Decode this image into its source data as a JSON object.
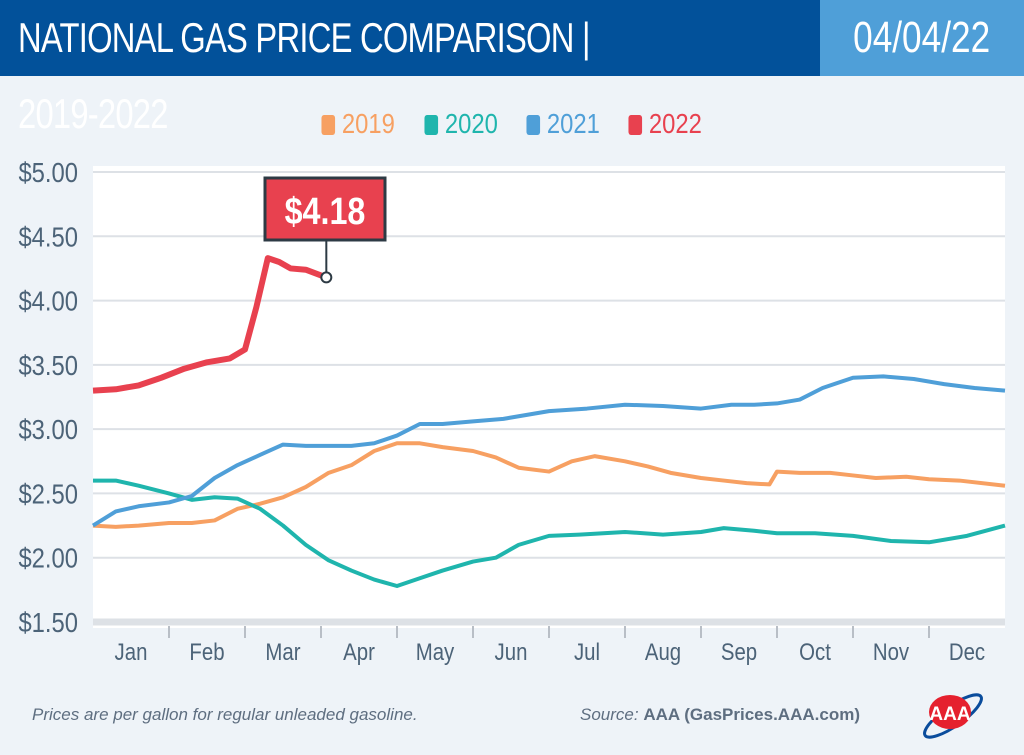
{
  "header": {
    "title": "NATIONAL GAS PRICE COMPARISON | 2019-2022",
    "date": "04/04/22"
  },
  "footer": {
    "note": "Prices are per gallon for regular unleaded gasoline.",
    "source_label": "Source:",
    "source": "AAA (GasPrices.AAA.com)",
    "logo": "AAA"
  },
  "chart_data": {
    "type": "line",
    "ylim": [
      1.5,
      5.0
    ],
    "yticks": [
      "$5.00",
      "$4.50",
      "$4.00",
      "$3.50",
      "$3.00",
      "$2.50",
      "$2.00",
      "$1.50"
    ],
    "ytick_values": [
      5.0,
      4.5,
      4.0,
      3.5,
      3.0,
      2.5,
      2.0,
      1.5
    ],
    "categories": [
      "Jan",
      "Feb",
      "Mar",
      "Apr",
      "May",
      "Jun",
      "Jul",
      "Aug",
      "Sep",
      "Oct",
      "Nov",
      "Dec"
    ],
    "grid": true,
    "legend_position": "top-center",
    "callout": {
      "label": "$4.18",
      "value": 4.18,
      "series": "2022"
    },
    "series": [
      {
        "name": "2019",
        "color": "#f7a062",
        "x": [
          0,
          0.3,
          0.6,
          1,
          1.3,
          1.6,
          1.9,
          2.2,
          2.5,
          2.8,
          3.1,
          3.4,
          3.7,
          4,
          4.3,
          4.6,
          5,
          5.3,
          5.6,
          6,
          6.3,
          6.6,
          7,
          7.3,
          7.6,
          8,
          8.3,
          8.6,
          8.9,
          9,
          9.3,
          9.7,
          10,
          10.3,
          10.7,
          11,
          11.4,
          12
        ],
        "y": [
          2.25,
          2.24,
          2.25,
          2.27,
          2.27,
          2.29,
          2.38,
          2.42,
          2.47,
          2.55,
          2.66,
          2.72,
          2.83,
          2.89,
          2.89,
          2.86,
          2.83,
          2.78,
          2.7,
          2.67,
          2.75,
          2.79,
          2.75,
          2.71,
          2.66,
          2.62,
          2.6,
          2.58,
          2.57,
          2.67,
          2.66,
          2.66,
          2.64,
          2.62,
          2.63,
          2.61,
          2.6,
          2.56
        ]
      },
      {
        "name": "2020",
        "color": "#1fb5ad",
        "x": [
          0,
          0.3,
          0.6,
          1,
          1.3,
          1.6,
          1.9,
          2.2,
          2.5,
          2.8,
          3.1,
          3.4,
          3.7,
          4,
          4.3,
          4.6,
          5,
          5.3,
          5.6,
          6,
          6.4,
          7,
          7.5,
          8,
          8.3,
          8.7,
          9,
          9.5,
          10,
          10.5,
          11,
          11.5,
          12
        ],
        "y": [
          2.6,
          2.6,
          2.56,
          2.5,
          2.45,
          2.47,
          2.46,
          2.38,
          2.25,
          2.1,
          1.98,
          1.9,
          1.83,
          1.78,
          1.84,
          1.9,
          1.97,
          2.0,
          2.1,
          2.17,
          2.18,
          2.2,
          2.18,
          2.2,
          2.23,
          2.21,
          2.19,
          2.19,
          2.17,
          2.13,
          2.12,
          2.17,
          2.25
        ]
      },
      {
        "name": "2021",
        "color": "#4f9fd8",
        "x": [
          0,
          0.3,
          0.6,
          1,
          1.3,
          1.6,
          1.9,
          2.2,
          2.5,
          2.8,
          3.1,
          3.4,
          3.7,
          4,
          4.3,
          4.6,
          5,
          5.4,
          6,
          6.5,
          7,
          7.5,
          8,
          8.4,
          8.7,
          9,
          9.3,
          9.6,
          10,
          10.4,
          10.8,
          11.2,
          11.6,
          12
        ],
        "y": [
          2.25,
          2.36,
          2.4,
          2.43,
          2.48,
          2.62,
          2.72,
          2.8,
          2.88,
          2.87,
          2.87,
          2.87,
          2.89,
          2.95,
          3.04,
          3.04,
          3.06,
          3.08,
          3.14,
          3.16,
          3.19,
          3.18,
          3.16,
          3.19,
          3.19,
          3.2,
          3.23,
          3.32,
          3.4,
          3.41,
          3.39,
          3.35,
          3.32,
          3.3
        ]
      },
      {
        "name": "2022",
        "color": "#e8414f",
        "x": [
          0,
          0.3,
          0.6,
          0.9,
          1.2,
          1.5,
          1.8,
          2.0,
          2.15,
          2.3,
          2.45,
          2.6,
          2.8,
          3.07
        ],
        "y": [
          3.3,
          3.31,
          3.34,
          3.4,
          3.47,
          3.52,
          3.55,
          3.62,
          3.95,
          4.33,
          4.3,
          4.25,
          4.24,
          4.18
        ]
      }
    ]
  }
}
